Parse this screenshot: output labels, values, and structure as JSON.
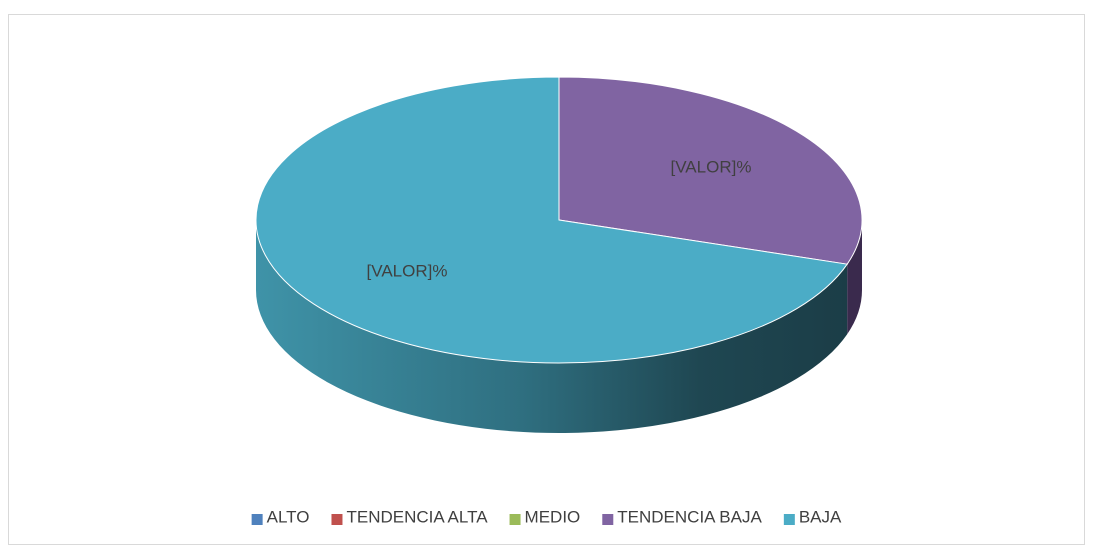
{
  "chart_data": {
    "type": "pie3d",
    "categories": [
      "ALTO",
      "TENDENCIA ALTA",
      "MEDIO",
      "TENDENCIA BAJA",
      "BAJA"
    ],
    "values": [
      0,
      0,
      0,
      30,
      70
    ],
    "value_labels": [
      null,
      null,
      null,
      "[VALOR]%",
      "[VALOR]%"
    ],
    "colors": [
      "#4f81bd",
      "#c0504d",
      "#9bbb59",
      "#8064a2",
      "#4bacc6"
    ],
    "side_colors": [
      "#2c4a6e",
      "#6e2c2a",
      "#566a30",
      "#3a2a4d",
      "#2b6c7e"
    ],
    "legend": "bottom"
  }
}
